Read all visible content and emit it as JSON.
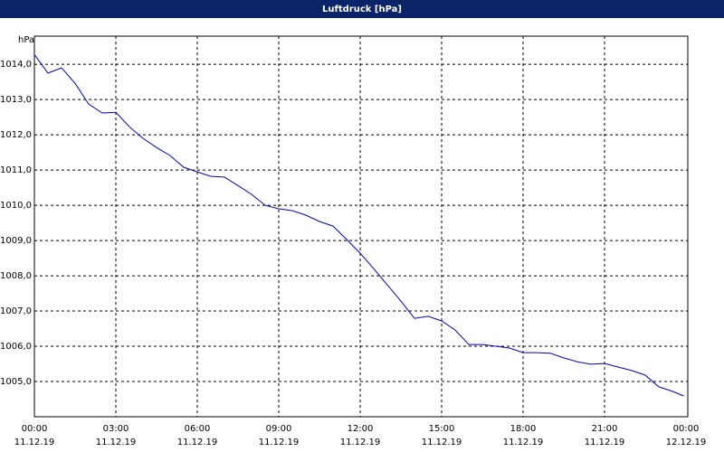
{
  "chart_data": {
    "type": "line",
    "title": "Luftdruck [hPa]",
    "y_unit": "hPa",
    "x": [
      "2019-12-11T00:00",
      "2019-12-11T00:30",
      "2019-12-11T01:00",
      "2019-12-11T01:30",
      "2019-12-11T02:00",
      "2019-12-11T02:30",
      "2019-12-11T03:00",
      "2019-12-11T03:30",
      "2019-12-11T04:00",
      "2019-12-11T04:30",
      "2019-12-11T05:00",
      "2019-12-11T05:30",
      "2019-12-11T06:00",
      "2019-12-11T06:30",
      "2019-12-11T07:00",
      "2019-12-11T07:30",
      "2019-12-11T08:00",
      "2019-12-11T08:30",
      "2019-12-11T09:00",
      "2019-12-11T09:30",
      "2019-12-11T10:00",
      "2019-12-11T10:30",
      "2019-12-11T11:00",
      "2019-12-11T11:30",
      "2019-12-11T12:00",
      "2019-12-11T12:30",
      "2019-12-11T13:00",
      "2019-12-11T13:30",
      "2019-12-11T14:00",
      "2019-12-11T14:30",
      "2019-12-11T15:00",
      "2019-12-11T15:30",
      "2019-12-11T16:00",
      "2019-12-11T16:30",
      "2019-12-11T17:00",
      "2019-12-11T17:30",
      "2019-12-11T18:00",
      "2019-12-11T18:30",
      "2019-12-11T19:00",
      "2019-12-11T19:30",
      "2019-12-11T20:00",
      "2019-12-11T20:30",
      "2019-12-11T21:00",
      "2019-12-11T21:30",
      "2019-12-11T22:00",
      "2019-12-11T22:30",
      "2019-12-11T23:00",
      "2019-12-11T23:30",
      "2019-12-11T23:55"
    ],
    "series": [
      {
        "name": "Luftdruck",
        "color": "#0000cc",
        "values": [
          1014.28,
          1013.75,
          1013.9,
          1013.46,
          1012.87,
          1012.62,
          1012.64,
          1012.23,
          1011.9,
          1011.64,
          1011.41,
          1011.08,
          1010.95,
          1010.82,
          1010.8,
          1010.56,
          1010.31,
          1010.0,
          1009.9,
          1009.85,
          1009.72,
          1009.54,
          1009.41,
          1009.03,
          1008.64,
          1008.2,
          1007.74,
          1007.28,
          1006.79,
          1006.85,
          1006.72,
          1006.46,
          1006.05,
          1006.05,
          1006.0,
          1005.95,
          1005.82,
          1005.82,
          1005.8,
          1005.67,
          1005.56,
          1005.49,
          1005.51,
          1005.41,
          1005.31,
          1005.18,
          1004.85,
          1004.72,
          1004.59
        ]
      }
    ],
    "ylim": [
      1004.0,
      1014.8
    ],
    "yticks": [
      {
        "value": 1005,
        "label": "1005,0"
      },
      {
        "value": 1006,
        "label": "1006,0"
      },
      {
        "value": 1007,
        "label": "1007,0"
      },
      {
        "value": 1008,
        "label": "1008,0"
      },
      {
        "value": 1009,
        "label": "1009,0"
      },
      {
        "value": 1010,
        "label": "1010,0"
      },
      {
        "value": 1011,
        "label": "1011,0"
      },
      {
        "value": 1012,
        "label": "1012,0"
      },
      {
        "value": 1013,
        "label": "1013,0"
      },
      {
        "value": 1014,
        "label": "1014,0"
      }
    ],
    "xlim": [
      "2019-12-11T00:00",
      "2019-12-12T00:00"
    ],
    "xticks": [
      {
        "value": "2019-12-11T00:00",
        "label": [
          "00:00",
          "11.12.19"
        ]
      },
      {
        "value": "2019-12-11T03:00",
        "label": [
          "03:00",
          "11.12.19"
        ]
      },
      {
        "value": "2019-12-11T06:00",
        "label": [
          "06:00",
          "11.12.19"
        ]
      },
      {
        "value": "2019-12-11T09:00",
        "label": [
          "09:00",
          "11.12.19"
        ]
      },
      {
        "value": "2019-12-11T12:00",
        "label": [
          "12:00",
          "11.12.19"
        ]
      },
      {
        "value": "2019-12-11T15:00",
        "label": [
          "15:00",
          "11.12.19"
        ]
      },
      {
        "value": "2019-12-11T18:00",
        "label": [
          "18:00",
          "11.12.19"
        ]
      },
      {
        "value": "2019-12-11T21:00",
        "label": [
          "21:00",
          "11.12.19"
        ]
      },
      {
        "value": "2019-12-12T00:00",
        "label": [
          "00:00",
          "12.12.19"
        ]
      }
    ],
    "grid": true
  }
}
